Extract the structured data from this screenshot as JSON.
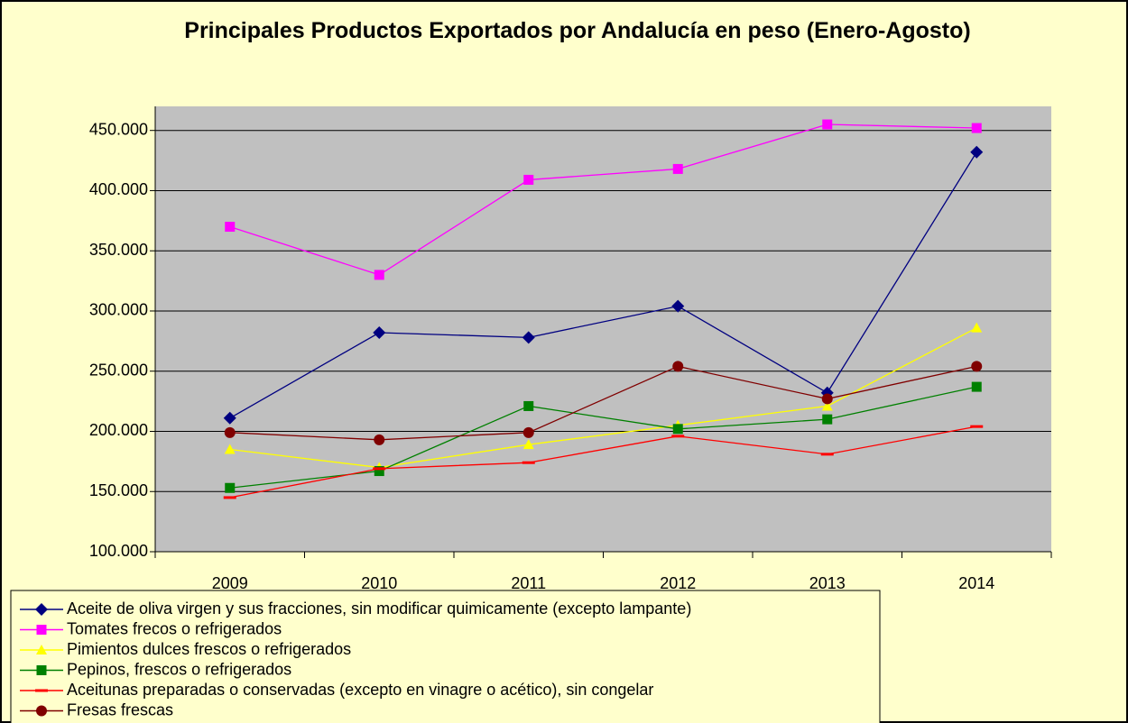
{
  "chart_data": {
    "type": "line",
    "title": "Principales Productos Exportados por Andalucía en peso (Enero-Agosto)",
    "categories": [
      "2009",
      "2010",
      "2011",
      "2012",
      "2013",
      "2014"
    ],
    "ylim": [
      100000,
      470000
    ],
    "yticks": [
      {
        "value": 100000,
        "label": "100.000"
      },
      {
        "value": 150000,
        "label": "150.000"
      },
      {
        "value": 200000,
        "label": "200.000"
      },
      {
        "value": 250000,
        "label": "250.000"
      },
      {
        "value": 300000,
        "label": "300.000"
      },
      {
        "value": 350000,
        "label": "350.000"
      },
      {
        "value": 400000,
        "label": "400.000"
      },
      {
        "value": 450000,
        "label": "450.000"
      }
    ],
    "grid": true,
    "legend": "bottom-left",
    "series": [
      {
        "name": "Aceite de oliva virgen y sus fracciones, sin modificar quimicamente (excepto lampante)",
        "color": "#000080",
        "marker": "diamond",
        "values": [
          211000,
          282000,
          278000,
          304000,
          232000,
          432000
        ]
      },
      {
        "name": "Tomates frecos o refrigerados",
        "color": "#ff00ff",
        "marker": "square",
        "values": [
          370000,
          330000,
          409000,
          418000,
          455000,
          452000
        ]
      },
      {
        "name": "Pimientos dulces frescos o refrigerados",
        "color": "#ffff00",
        "marker": "triangle",
        "values": [
          185000,
          170000,
          189000,
          205000,
          221000,
          286000
        ]
      },
      {
        "name": "Pepinos, frescos o refrigerados",
        "color": "#008000",
        "marker": "square",
        "values": [
          153000,
          167000,
          221000,
          202000,
          210000,
          237000
        ]
      },
      {
        "name": "Aceitunas preparadas o conservadas (excepto en vinagre o acético), sin congelar",
        "color": "#ff0000",
        "marker": "dash",
        "values": [
          145000,
          169000,
          174000,
          196000,
          181000,
          204000
        ]
      },
      {
        "name": "Fresas frescas",
        "color": "#800000",
        "marker": "circle",
        "values": [
          199000,
          193000,
          199000,
          254000,
          227000,
          254000
        ]
      }
    ]
  }
}
